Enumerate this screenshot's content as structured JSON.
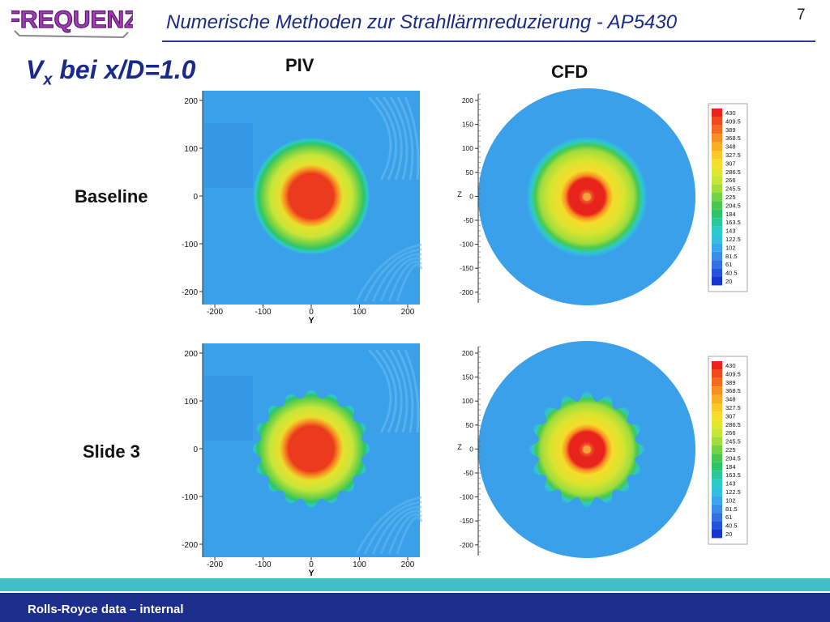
{
  "logo": {
    "text": "FREQUENZ",
    "icon": "frequenz-logo"
  },
  "header": {
    "title": "Numerische Methoden zur Strahllärmreduzierung - AP5430",
    "page_number": "7"
  },
  "slide": {
    "title_main": "V",
    "title_sub": "x",
    "title_rest": " bei x/D=1.0"
  },
  "columns": {
    "piv": "PIV",
    "cfd": "CFD"
  },
  "rows": {
    "baseline": "Baseline",
    "slide3": "Slide 3"
  },
  "piv_axis": {
    "x_ticks": [
      "-200",
      "-100",
      "0",
      "100",
      "200"
    ],
    "y_ticks": [
      "200",
      "100",
      "0",
      "-100",
      "-200"
    ],
    "xlabel": "Y"
  },
  "cfd_axis": {
    "y_ticks": [
      "200",
      "150",
      "100",
      "50",
      "0",
      "-50",
      "-100",
      "-150",
      "-200"
    ],
    "ylabel": "Z"
  },
  "legend": {
    "levels": [
      "430",
      "409.5",
      "389",
      "368.5",
      "348",
      "327.5",
      "307",
      "286.5",
      "266",
      "245.5",
      "225",
      "204.5",
      "184",
      "163.5",
      "143",
      "122.5",
      "102",
      "81.5",
      "61",
      "40.5",
      "20"
    ],
    "colors": [
      "#e8231c",
      "#ef4a1d",
      "#f36b1f",
      "#f78f22",
      "#f9ad25",
      "#fbc828",
      "#f6dc2b",
      "#e2e62e",
      "#c6e63a",
      "#a0dd3d",
      "#73d245",
      "#48c850",
      "#2ec568",
      "#29c79a",
      "#2dcbc7",
      "#33bfe0",
      "#39a7ee",
      "#3a8cea",
      "#3171e2",
      "#2452da",
      "#1537d0"
    ]
  },
  "footer": {
    "text": "Rolls-Royce data – internal"
  }
}
